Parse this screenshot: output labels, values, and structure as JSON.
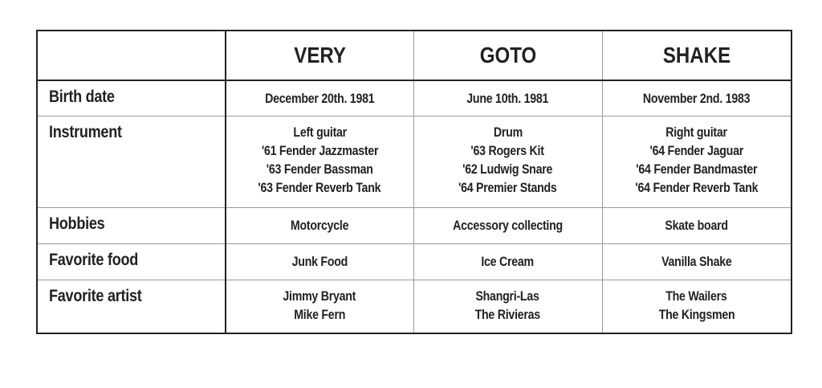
{
  "columns": [
    "VERY",
    "GOTO",
    "SHAKE"
  ],
  "rows": [
    {
      "label": "Birth date",
      "cells": [
        [
          "December 20th. 1981"
        ],
        [
          "June 10th. 1981"
        ],
        [
          "November 2nd. 1983"
        ]
      ]
    },
    {
      "label": "Instrument",
      "cells": [
        [
          "Left guitar",
          "'61 Fender Jazzmaster",
          "'63 Fender Bassman",
          "'63 Fender Reverb Tank"
        ],
        [
          "Drum",
          "'63 Rogers Kit",
          "'62 Ludwig Snare",
          "'64 Premier Stands"
        ],
        [
          "Right guitar",
          "'64 Fender Jaguar",
          "'64 Fender Bandmaster",
          "'64 Fender Reverb Tank"
        ]
      ]
    },
    {
      "label": "Hobbies",
      "cells": [
        [
          "Motorcycle"
        ],
        [
          "Accessory collecting"
        ],
        [
          "Skate board"
        ]
      ]
    },
    {
      "label": "Favorite food",
      "cells": [
        [
          "Junk Food"
        ],
        [
          "Ice Cream"
        ],
        [
          "Vanilla Shake"
        ]
      ]
    },
    {
      "label": "Favorite artist",
      "cells": [
        [
          "Jimmy Bryant",
          "Mike Fern"
        ],
        [
          "Shangri-Las",
          "The Rivieras"
        ],
        [
          "The Wailers",
          "The Kingsmen"
        ]
      ]
    }
  ]
}
